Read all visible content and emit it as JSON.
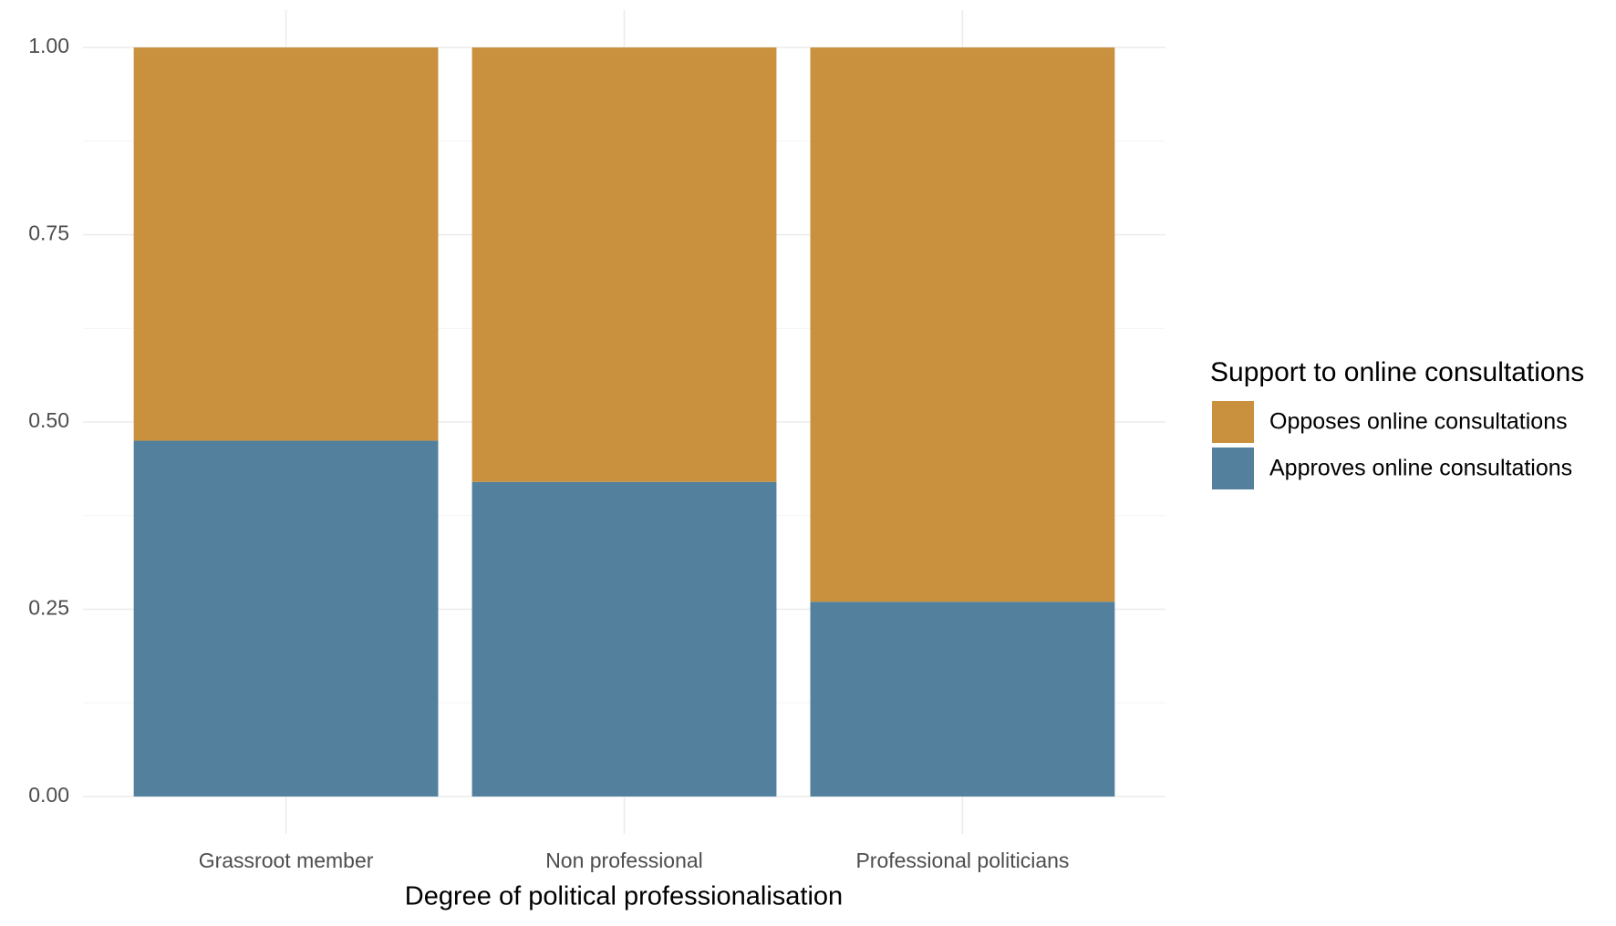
{
  "chart_data": {
    "type": "stacked_bar",
    "x_label": "Degree of political professionalisation",
    "categories": [
      "Grassroot member",
      "Non professional",
      "Professional politicians"
    ],
    "series": [
      {
        "name": "Opposes online consultations",
        "color": "#c9913e",
        "values": [
          0.525,
          0.58,
          0.74
        ]
      },
      {
        "name": "Approves online consultations",
        "color": "#52809d",
        "values": [
          0.475,
          0.42,
          0.26
        ]
      }
    ],
    "ylim": [
      -0.05,
      1.05
    ],
    "yticks": [
      {
        "value": 0,
        "label": "0.00"
      },
      {
        "value": 0.25,
        "label": "0.25"
      },
      {
        "value": 0.5,
        "label": "0.50"
      },
      {
        "value": 0.75,
        "label": "0.75"
      },
      {
        "value": 1,
        "label": "1.00"
      }
    ],
    "grid": true,
    "legend_title": "Support to online consultations",
    "legend_position": "right"
  }
}
